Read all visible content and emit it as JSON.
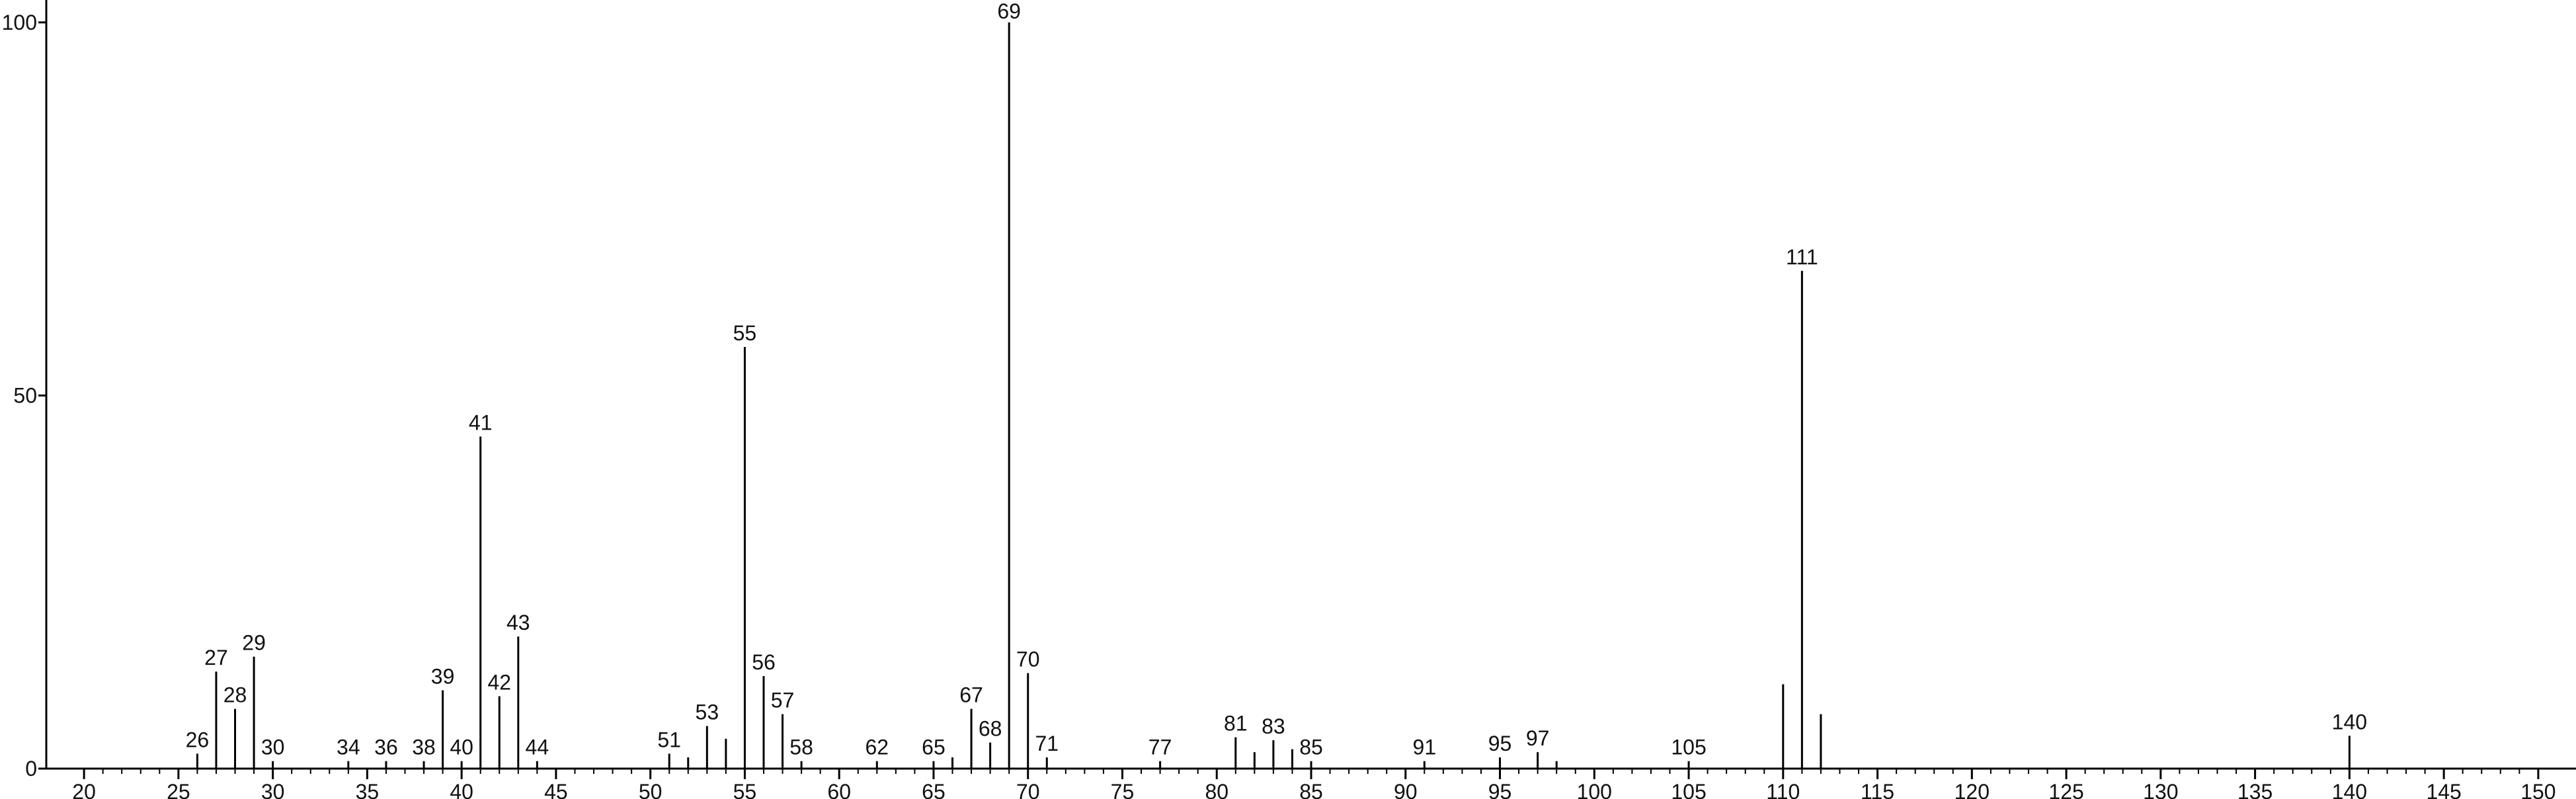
{
  "chart_data": {
    "type": "stem",
    "x": [
      26,
      27,
      28,
      29,
      30,
      34,
      36,
      38,
      39,
      40,
      41,
      42,
      43,
      44,
      51,
      52,
      53,
      54,
      55,
      56,
      57,
      58,
      62,
      65,
      66,
      67,
      68,
      69,
      70,
      71,
      77,
      81,
      82,
      83,
      84,
      85,
      91,
      95,
      97,
      98,
      105,
      110,
      111,
      112,
      140
    ],
    "values": [
      2,
      13,
      8,
      15,
      1,
      1,
      1,
      1,
      10.5,
      1,
      44.5,
      9.7,
      17.7,
      1,
      2,
      1.5,
      5.7,
      4,
      56.5,
      12.4,
      7.3,
      1,
      1,
      1,
      1.5,
      8,
      3.5,
      100,
      12.8,
      1.5,
      1,
      4.2,
      2.2,
      3.8,
      2.6,
      1,
      1,
      1.5,
      2.2,
      1,
      1,
      11.3,
      66.7,
      7.3,
      4.4
    ],
    "peak_labels": [
      "26",
      "27",
      "28",
      "29",
      "30",
      "34",
      "36",
      "38",
      "39",
      "40",
      "41",
      "42",
      "43",
      "44",
      "51",
      null,
      "53",
      null,
      "55",
      "56",
      "57",
      "58",
      "62",
      "65",
      null,
      "67",
      "68",
      "69",
      "70",
      "71",
      "77",
      "81",
      null,
      "83",
      null,
      "85",
      "91",
      "95",
      "97",
      null,
      "105",
      null,
      "111",
      null,
      "140"
    ],
    "color": "#000000",
    "xlim": [
      18,
      152
    ],
    "xticks": [
      20,
      25,
      30,
      35,
      40,
      45,
      50,
      55,
      60,
      65,
      70,
      75,
      80,
      85,
      90,
      95,
      100,
      105,
      110,
      115,
      120,
      125,
      130,
      135,
      140,
      145,
      150
    ],
    "ylim": [
      0,
      103
    ],
    "yticks": [
      0,
      50,
      100
    ]
  }
}
